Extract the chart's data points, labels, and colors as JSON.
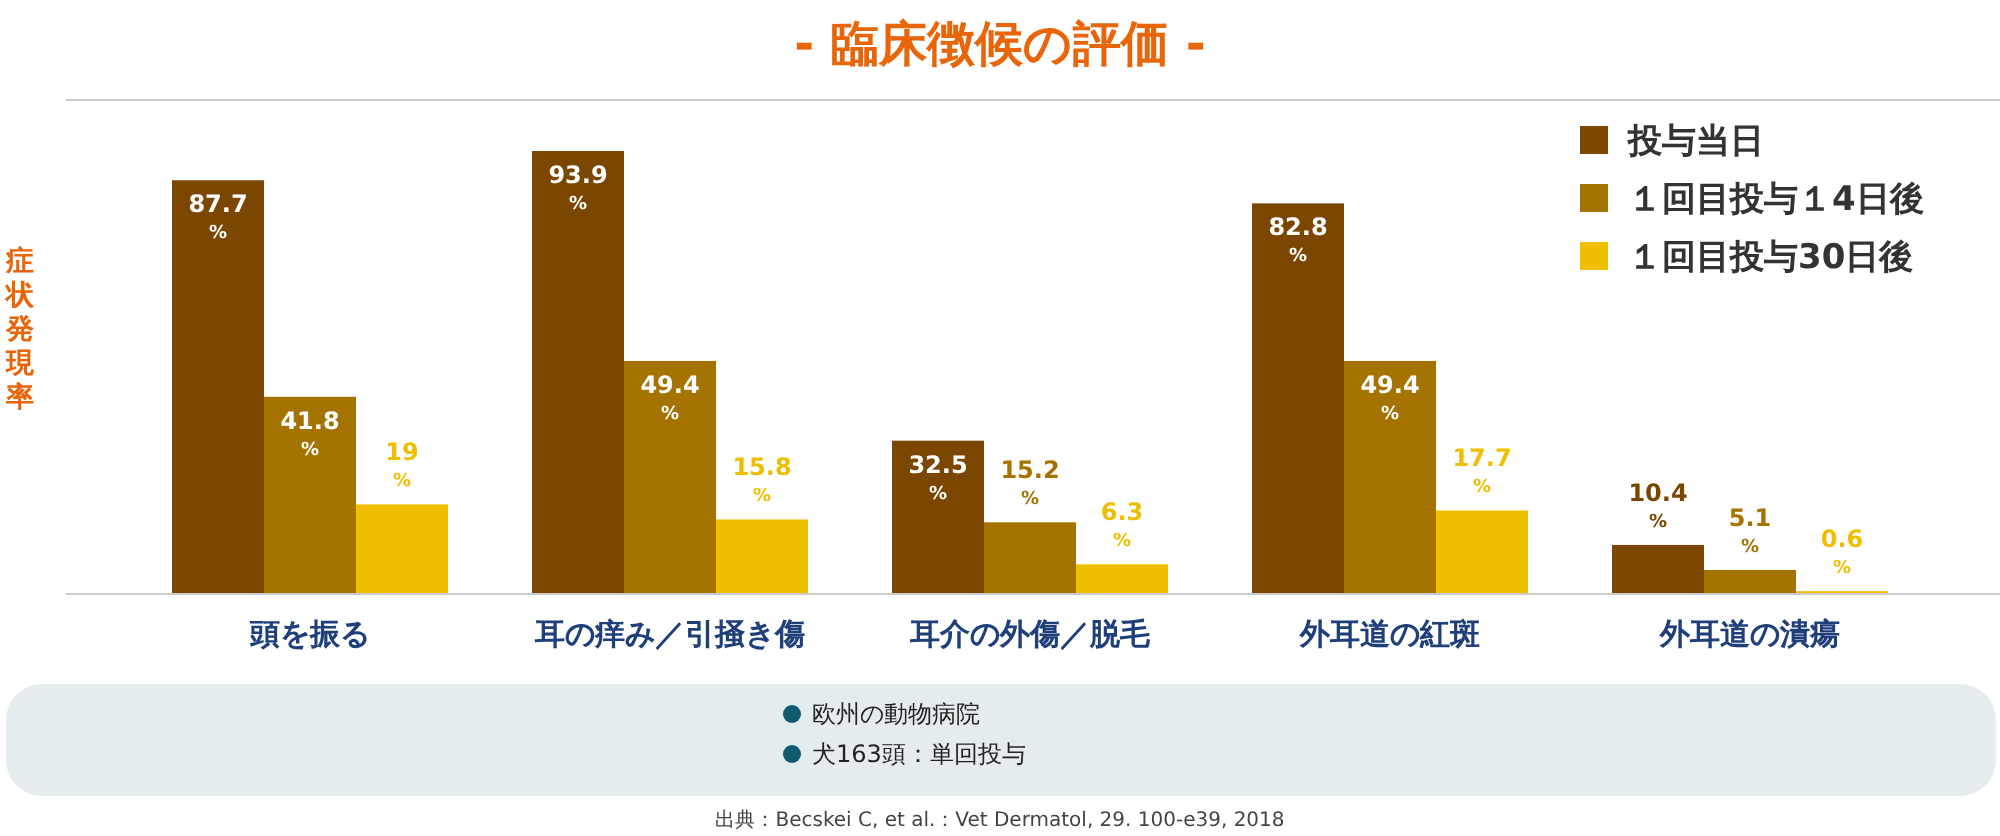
{
  "chart_data": {
    "type": "bar",
    "title": "- 臨床徴候の評価 -",
    "ylabel": "症状発現率",
    "categories": [
      "頭を振る",
      "耳の痒み／引掻き傷",
      "耳介の外傷／脱毛",
      "外耳道の紅斑",
      "外耳道の潰瘍"
    ],
    "series": [
      {
        "name": "投与当日",
        "color": "#7b4700",
        "values": [
          87.7,
          93.9,
          32.5,
          82.8,
          10.4
        ],
        "value_labels": [
          "87.7$_{%}$",
          "93.9$_{%}$",
          "32.5$_{%}$",
          "82.8$_{%}$",
          "10.4$_{%}$"
        ]
      },
      {
        "name": "１回目投与１4日後",
        "color": "#a57300",
        "values": [
          41.8,
          49.4,
          15.2,
          49.4,
          5.1
        ],
        "value_labels": [
          "41.8$_{%}$",
          "49.4$_{%}$",
          "15.2$_{%}$",
          "49.4$_{%}$",
          "5.1$_{%}$"
        ]
      },
      {
        "name": "１回目投与30日後",
        "color": "#f0be00",
        "values": [
          19,
          15.8,
          6.3,
          17.7,
          0.6
        ],
        "value_labels": [
          "19$_{%}$",
          "15.8$_{%}$",
          "6.3$_{%}$",
          "17.7$_{%}$",
          "0.6$_{%}$"
        ]
      }
    ],
    "relative": false,
    "legend": "top right",
    "annotations": [
      "欧州の動物病院",
      "犬163頭：単回投与",
      "出典：Becskei C, et al.：Vet Dermatol, 29. 100-e39, 2018"
    ]
  }
}
